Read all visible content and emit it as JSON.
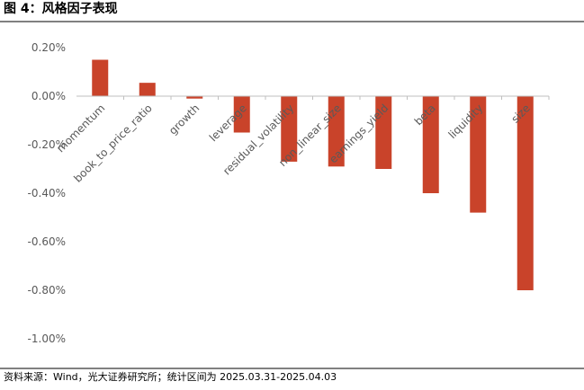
{
  "chart_data": {
    "type": "bar",
    "title": "图 4：风格因子表现",
    "source": "资料来源：Wind，光大证券研究所；统计区间为 2025.03.31-2025.04.03",
    "categories": [
      "momentum",
      "book_to_price_ratio",
      "growth",
      "leverage",
      "residual_volatility",
      "non_linear_size",
      "earnings_yield",
      "beta",
      "liquidity",
      "size"
    ],
    "values": [
      0.15,
      0.055,
      -0.01,
      -0.15,
      -0.27,
      -0.29,
      -0.3,
      -0.4,
      -0.48,
      -0.8
    ],
    "color": "#c9432a",
    "ylim": [
      -1.0,
      0.2
    ],
    "yticks": [
      {
        "value": 0.2,
        "label": "0.20%"
      },
      {
        "value": 0,
        "label": "0.00%"
      },
      {
        "value": -0.2,
        "label": "-0.20%"
      },
      {
        "value": -0.4,
        "label": "-0.40%"
      },
      {
        "value": -0.6,
        "label": "-0.60%"
      },
      {
        "value": -0.8,
        "label": "-0.80%"
      },
      {
        "value": -1.0,
        "label": "-1.00%"
      }
    ],
    "grid": false
  }
}
